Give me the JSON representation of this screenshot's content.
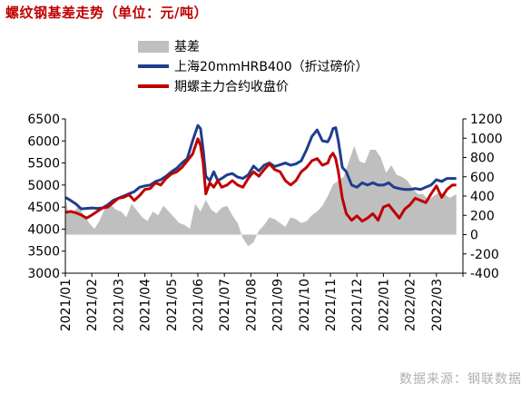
{
  "title": "螺纹钢基差走势（单位：元/吨）",
  "source": "数据来源：钢联数据",
  "chart_data": {
    "type": "line",
    "left_axis": {
      "min": 3000,
      "max": 6500,
      "ticks": [
        "6500",
        "6000",
        "5500",
        "5000",
        "4500",
        "4000",
        "3500",
        "3000"
      ]
    },
    "right_axis": {
      "min": -400,
      "max": 1200,
      "ticks": [
        "1200",
        "1000",
        "800",
        "600",
        "400",
        "200",
        "0",
        "-200",
        "-400"
      ]
    },
    "x_labels": [
      "2021/01",
      "2021/02",
      "2021/03",
      "2021/04",
      "2021/05",
      "2021/06",
      "2021/07",
      "2021/08",
      "2021/09",
      "2021/10",
      "2021/11",
      "2021/12",
      "2022/01",
      "2022/02",
      "2022/03"
    ],
    "grid": false,
    "legend_position": "top",
    "colors": {
      "basis": "#bfbfbf",
      "spot": "#1f3e8c",
      "futures": "#c00000"
    },
    "series": [
      {
        "name": "基差",
        "axis": "right",
        "type": "area",
        "x": [
          0,
          0.1,
          0.3,
          0.5,
          0.7,
          0.9,
          1.1,
          1.3,
          1.5,
          1.7,
          1.9,
          2.1,
          2.3,
          2.5,
          2.7,
          2.9,
          3.1,
          3.3,
          3.5,
          3.7,
          3.9,
          4.1,
          4.3,
          4.5,
          4.7,
          4.9,
          5.1,
          5.3,
          5.5,
          5.7,
          5.9,
          6.1,
          6.3,
          6.5,
          6.7,
          6.9,
          7.1,
          7.3,
          7.5,
          7.7,
          7.9,
          8.1,
          8.3,
          8.5,
          8.7,
          8.9,
          9.1,
          9.3,
          9.5,
          9.7,
          9.9,
          10.1,
          10.3,
          10.5,
          10.7,
          10.9,
          11.1,
          11.3,
          11.5,
          11.7,
          11.9,
          12.1,
          12.3,
          12.5,
          12.7,
          12.9,
          13.1,
          13.3,
          13.5,
          13.7,
          13.9,
          14.1,
          14.3,
          14.5,
          14.75
        ],
        "values": [
          380,
          250,
          220,
          300,
          200,
          120,
          60,
          150,
          280,
          320,
          260,
          240,
          180,
          320,
          250,
          180,
          140,
          240,
          200,
          300,
          240,
          180,
          120,
          100,
          60,
          320,
          240,
          360,
          260,
          220,
          280,
          300,
          200,
          120,
          -40,
          -120,
          -80,
          40,
          100,
          180,
          160,
          120,
          80,
          180,
          160,
          120,
          140,
          200,
          240,
          300,
          400,
          520,
          560,
          600,
          760,
          920,
          760,
          740,
          880,
          880,
          800,
          640,
          720,
          620,
          600,
          560,
          480,
          420,
          420,
          360,
          400,
          440,
          420,
          380,
          420
        ]
      },
      {
        "name": "上海20mmHRB400（折过磅价）",
        "axis": "left",
        "type": "line",
        "x": [
          0,
          0.2,
          0.4,
          0.6,
          0.8,
          1.0,
          1.2,
          1.4,
          1.6,
          1.8,
          2.0,
          2.2,
          2.4,
          2.6,
          2.8,
          3.0,
          3.2,
          3.4,
          3.6,
          3.8,
          4.0,
          4.2,
          4.4,
          4.6,
          4.8,
          5.0,
          5.1,
          5.2,
          5.3,
          5.45,
          5.6,
          5.75,
          5.9,
          6.1,
          6.3,
          6.5,
          6.7,
          6.9,
          7.1,
          7.3,
          7.5,
          7.7,
          7.9,
          8.1,
          8.3,
          8.5,
          8.7,
          8.9,
          9.1,
          9.3,
          9.5,
          9.7,
          9.9,
          10.0,
          10.1,
          10.2,
          10.3,
          10.45,
          10.6,
          10.8,
          11.0,
          11.2,
          11.4,
          11.6,
          11.8,
          12.0,
          12.2,
          12.4,
          12.6,
          12.8,
          13.0,
          13.2,
          13.4,
          13.6,
          13.8,
          14.0,
          14.2,
          14.4,
          14.6,
          14.75
        ],
        "values": [
          4720,
          4650,
          4570,
          4460,
          4470,
          4480,
          4470,
          4480,
          4550,
          4650,
          4700,
          4750,
          4800,
          4850,
          4950,
          4980,
          5000,
          5080,
          5120,
          5200,
          5300,
          5380,
          5500,
          5600,
          6000,
          6350,
          6280,
          5800,
          5200,
          5100,
          5300,
          5100,
          5150,
          5230,
          5260,
          5180,
          5150,
          5230,
          5430,
          5320,
          5450,
          5500,
          5420,
          5460,
          5500,
          5450,
          5480,
          5550,
          5800,
          6100,
          6250,
          6000,
          5980,
          6100,
          6280,
          6300,
          6000,
          5400,
          5300,
          5000,
          4950,
          5050,
          5000,
          5050,
          5000,
          5000,
          5050,
          4950,
          4920,
          4900,
          4900,
          4920,
          4900,
          4950,
          5000,
          5120,
          5080,
          5150,
          5150,
          5150
        ]
      },
      {
        "name": "期螺主力合约收盘价",
        "axis": "left",
        "type": "line",
        "x": [
          0,
          0.2,
          0.4,
          0.6,
          0.8,
          1.0,
          1.2,
          1.4,
          1.6,
          1.8,
          2.0,
          2.2,
          2.4,
          2.6,
          2.8,
          3.0,
          3.2,
          3.4,
          3.6,
          3.8,
          4.0,
          4.2,
          4.4,
          4.6,
          4.8,
          5.0,
          5.1,
          5.2,
          5.3,
          5.45,
          5.6,
          5.75,
          5.9,
          6.1,
          6.3,
          6.5,
          6.7,
          6.9,
          7.1,
          7.3,
          7.5,
          7.7,
          7.9,
          8.1,
          8.3,
          8.5,
          8.7,
          8.9,
          9.1,
          9.3,
          9.5,
          9.7,
          9.9,
          10.0,
          10.1,
          10.2,
          10.3,
          10.45,
          10.6,
          10.8,
          11.0,
          11.2,
          11.4,
          11.6,
          11.8,
          12.0,
          12.2,
          12.4,
          12.6,
          12.8,
          13.0,
          13.2,
          13.4,
          13.6,
          13.8,
          14.0,
          14.2,
          14.4,
          14.6,
          14.75
        ],
        "values": [
          4380,
          4400,
          4370,
          4320,
          4250,
          4320,
          4400,
          4480,
          4500,
          4600,
          4700,
          4720,
          4780,
          4650,
          4760,
          4900,
          4920,
          5050,
          5000,
          5150,
          5250,
          5300,
          5400,
          5550,
          5700,
          6050,
          5900,
          5500,
          4800,
          5050,
          4950,
          5100,
          4950,
          5000,
          5100,
          5000,
          4950,
          5150,
          5300,
          5200,
          5350,
          5480,
          5350,
          5300,
          5100,
          5000,
          5100,
          5300,
          5400,
          5550,
          5600,
          5450,
          5500,
          5650,
          5720,
          5600,
          5300,
          4700,
          4350,
          4200,
          4300,
          4180,
          4250,
          4350,
          4200,
          4500,
          4550,
          4400,
          4250,
          4450,
          4550,
          4700,
          4650,
          4600,
          4800,
          4980,
          4720,
          4900,
          5000,
          5000
        ]
      }
    ]
  }
}
